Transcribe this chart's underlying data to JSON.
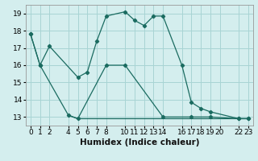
{
  "xlabel": "Humidex (Indice chaleur)",
  "bg_color": "#d4eeee",
  "grid_color": "#a8d4d4",
  "line_color": "#1a6b60",
  "xlim": [
    -0.5,
    23.5
  ],
  "ylim": [
    12.5,
    19.5
  ],
  "xticks": [
    0,
    1,
    2,
    4,
    5,
    6,
    7,
    8,
    10,
    11,
    12,
    13,
    14,
    16,
    17,
    18,
    19,
    20,
    22,
    23
  ],
  "yticks": [
    13,
    14,
    15,
    16,
    17,
    18,
    19
  ],
  "line1_x": [
    0,
    1,
    2,
    5,
    6,
    7,
    8,
    10,
    11,
    12,
    13,
    14,
    16,
    17,
    18,
    19,
    22,
    23
  ],
  "line1_y": [
    17.8,
    16.0,
    17.1,
    15.3,
    15.6,
    17.4,
    18.85,
    19.1,
    18.6,
    18.3,
    18.85,
    18.85,
    16.0,
    13.85,
    13.5,
    13.3,
    12.9,
    12.9
  ],
  "line2_x": [
    0,
    1,
    4,
    5,
    8,
    10,
    14,
    17,
    19,
    22,
    23
  ],
  "line2_y": [
    17.8,
    16.0,
    13.1,
    12.9,
    16.0,
    16.0,
    13.0,
    13.0,
    13.0,
    12.9,
    12.9
  ],
  "line3_x": [
    4,
    5,
    23
  ],
  "line3_y": [
    13.1,
    12.9,
    12.9
  ],
  "tick_fontsize": 6.5,
  "label_fontsize": 7.5
}
